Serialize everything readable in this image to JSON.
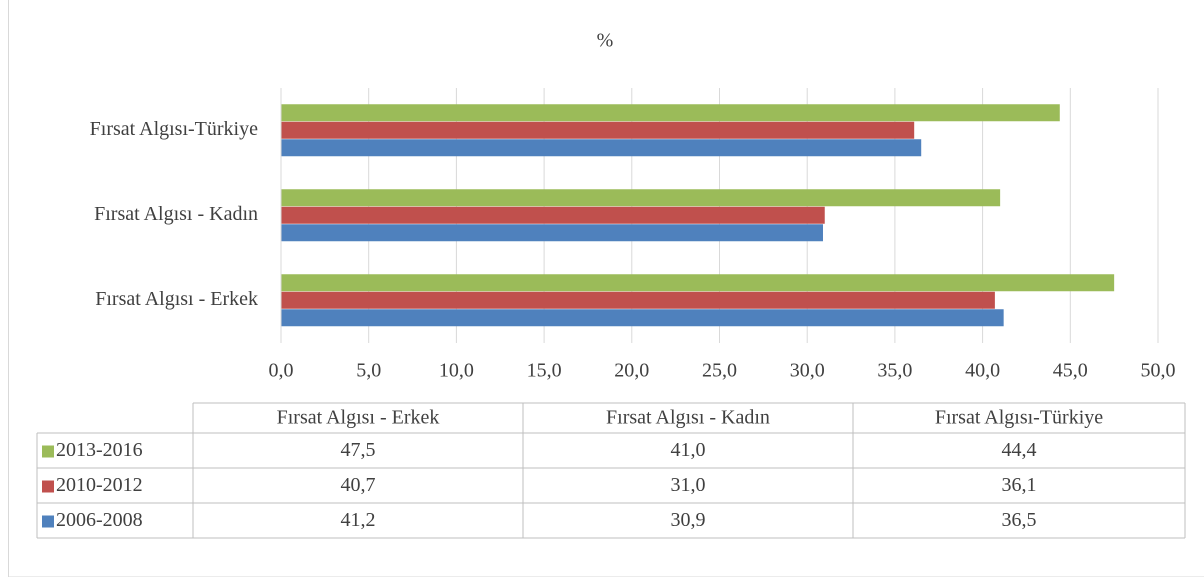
{
  "chart_data": {
    "type": "bar",
    "orientation": "horizontal",
    "title": "%",
    "categories": [
      "Fırsat Algısı - Erkek",
      "Fırsat Algısı - Kadın",
      "Fırsat Algısı-Türkiye"
    ],
    "series": [
      {
        "name": "2013-2016",
        "color": "#9bbb59",
        "values": [
          47.5,
          41.0,
          44.4
        ],
        "value_labels": [
          "47,5",
          "41,0",
          "44,4"
        ]
      },
      {
        "name": "2010-2012",
        "color": "#c0504d",
        "values": [
          40.7,
          31.0,
          36.1
        ],
        "value_labels": [
          "40,7",
          "31,0",
          "36,1"
        ]
      },
      {
        "name": "2006-2008",
        "color": "#4f81bd",
        "values": [
          41.2,
          30.9,
          36.5
        ],
        "value_labels": [
          "41,2",
          "30,9",
          "36,5"
        ]
      }
    ],
    "xlim": [
      0,
      50
    ],
    "xticks": [
      {
        "value": 0,
        "label": "0,0"
      },
      {
        "value": 5,
        "label": "5,0"
      },
      {
        "value": 10,
        "label": "10,0"
      },
      {
        "value": 15,
        "label": "15,0"
      },
      {
        "value": 20,
        "label": "20,0"
      },
      {
        "value": 25,
        "label": "25,0"
      },
      {
        "value": 30,
        "label": "30,0"
      },
      {
        "value": 35,
        "label": "35,0"
      },
      {
        "value": 40,
        "label": "40,0"
      },
      {
        "value": 45,
        "label": "45,0"
      },
      {
        "value": 50,
        "label": "50,0"
      }
    ],
    "grid": true
  }
}
